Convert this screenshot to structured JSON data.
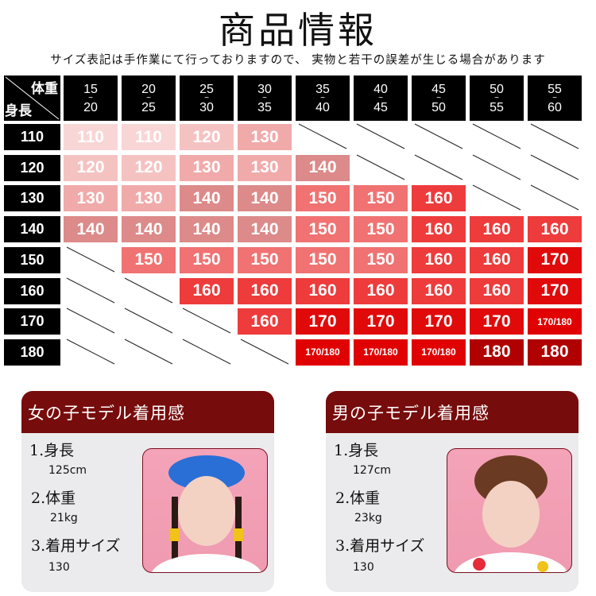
{
  "title": "商品情報",
  "note": "サイズ表記は手作業にて行っておりますので、 実物と若干の誤差が生じる場合があります",
  "size_chart": {
    "corner_weight": "体重",
    "corner_height": "身長",
    "weight_ranges": [
      {
        "from": "15",
        "to": "20"
      },
      {
        "from": "20",
        "to": "25"
      },
      {
        "from": "25",
        "to": "30"
      },
      {
        "from": "30",
        "to": "35"
      },
      {
        "from": "35",
        "to": "40"
      },
      {
        "from": "40",
        "to": "45"
      },
      {
        "from": "45",
        "to": "50"
      },
      {
        "from": "50",
        "to": "55"
      },
      {
        "from": "55",
        "to": "60"
      }
    ],
    "tilde": "~",
    "heights": [
      "110",
      "120",
      "130",
      "140",
      "150",
      "160",
      "170",
      "180"
    ],
    "rows": [
      [
        "110",
        "110",
        "120",
        "130",
        null,
        null,
        null,
        null,
        null
      ],
      [
        "120",
        "120",
        "130",
        "130",
        "140",
        null,
        null,
        null,
        null
      ],
      [
        "130",
        "130",
        "140",
        "140",
        "150",
        "150",
        "160",
        null,
        null
      ],
      [
        "140",
        "140",
        "140",
        "140",
        "150",
        "150",
        "160",
        "160",
        "160"
      ],
      [
        null,
        "150",
        "150",
        "150",
        "150",
        "150",
        "160",
        "160",
        "170"
      ],
      [
        null,
        null,
        "160",
        "160",
        "160",
        "160",
        "160",
        "160",
        "170"
      ],
      [
        null,
        null,
        null,
        "160",
        "170",
        "170",
        "170",
        "170",
        "170/180"
      ],
      [
        null,
        null,
        null,
        null,
        "170/180",
        "170/180",
        "170/180",
        "180",
        "180"
      ]
    ],
    "colors": {
      "110": "#f8d6d6",
      "120": "#f5c2c2",
      "130": "#f1aaaa",
      "140": "#dc8a8a",
      "150": "#f07272",
      "160": "#ee3b3b",
      "170": "#e10a0a",
      "170/180": "#e00202",
      "180": "#b00000"
    }
  },
  "models": [
    {
      "heading": "女の子モデル着用感",
      "height_label": "1.身長",
      "height": "125cm",
      "weight_label": "2.体重",
      "weight": "21kg",
      "size_label": "3.着用サイズ",
      "size": "130"
    },
    {
      "heading": "男の子モデル着用感",
      "height_label": "1.身長",
      "height": "127cm",
      "weight_label": "2.体重",
      "weight": "23kg",
      "size_label": "3.着用サイズ",
      "size": "130"
    }
  ]
}
